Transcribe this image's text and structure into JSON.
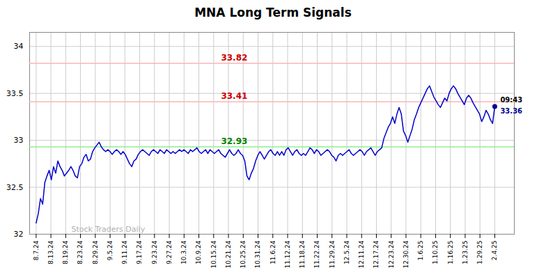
{
  "chart_data": {
    "type": "line",
    "title": "MNA Long Term Signals",
    "color": "#0000cc",
    "end_dot_color": "#00008b",
    "background_color": "#ffffff",
    "grid": true,
    "xlim": [
      -3,
      220
    ],
    "ylim": [
      32.0,
      34.15
    ],
    "yticks": [
      32.0,
      32.5,
      33.0,
      33.5,
      34.0
    ],
    "xticks": [
      {
        "value": 0,
        "label": "8.7.24"
      },
      {
        "value": 6.806451612903226,
        "label": "8.13.24"
      },
      {
        "value": 13.612903225806452,
        "label": "8.19.24"
      },
      {
        "value": 20.41935483870968,
        "label": "8.23.24"
      },
      {
        "value": 27.225806451612904,
        "label": "8.29.24"
      },
      {
        "value": 34.03225806451613,
        "label": "9.5.24"
      },
      {
        "value": 40.83870967741935,
        "label": "9.11.24"
      },
      {
        "value": 47.645161290322584,
        "label": "9.17.24"
      },
      {
        "value": 54.45161290322581,
        "label": "9.23.24"
      },
      {
        "value": 61.25806451612903,
        "label": "9.27.24"
      },
      {
        "value": 68.06451612903226,
        "label": "10.3.24"
      },
      {
        "value": 74.87096774193549,
        "label": "10.9.24"
      },
      {
        "value": 81.6774193548387,
        "label": "10.15.24"
      },
      {
        "value": 88.48387096774194,
        "label": "10.21.24"
      },
      {
        "value": 95.29032258064517,
        "label": "10.25.24"
      },
      {
        "value": 102.09677419354838,
        "label": "10.31.24"
      },
      {
        "value": 108.90322580645162,
        "label": "11.6.24"
      },
      {
        "value": 115.70967741935483,
        "label": "11.12.24"
      },
      {
        "value": 122.51612903225806,
        "label": "11.18.24"
      },
      {
        "value": 129.32258064516128,
        "label": "11.22.24"
      },
      {
        "value": 136.1290322580645,
        "label": "11.29.24"
      },
      {
        "value": 142.93548387096774,
        "label": "12.5.24"
      },
      {
        "value": 149.74193548387098,
        "label": "12.11.24"
      },
      {
        "value": 156.5483870967742,
        "label": "12.17.24"
      },
      {
        "value": 163.3548387096774,
        "label": "12.23.24"
      },
      {
        "value": 170.16129032258064,
        "label": "12.30.24"
      },
      {
        "value": 176.96774193548387,
        "label": "1.6.25"
      },
      {
        "value": 183.7741935483871,
        "label": "1.10.25"
      },
      {
        "value": 190.58064516129033,
        "label": "1.16.25"
      },
      {
        "value": 197.38709677419354,
        "label": "1.23.25"
      },
      {
        "value": 204.19354838709677,
        "label": "1.29.25"
      },
      {
        "value": 211,
        "label": "2.4.25"
      }
    ],
    "hlines": [
      {
        "value": 33.82,
        "color": "#ffb3b3",
        "label": "33.82",
        "label_color": "#cc0000"
      },
      {
        "value": 33.41,
        "color": "#ffb3b3",
        "label": "33.41",
        "label_color": "#cc0000"
      },
      {
        "value": 32.93,
        "color": "#90ee90",
        "label": "32.93",
        "label_color": "#008000"
      }
    ],
    "annotations": [
      {
        "text": "09:43",
        "color": "#000000"
      },
      {
        "text": "33.36",
        "color": "#00008b"
      }
    ],
    "watermark": {
      "text": "Stock Traders Daily",
      "color": "#b0b0b0"
    },
    "x": [
      0,
      1,
      2,
      3,
      4,
      5,
      6,
      7,
      8,
      9,
      10,
      11,
      12,
      13,
      14,
      15,
      16,
      17,
      18,
      19,
      20,
      21,
      22,
      23,
      24,
      25,
      26,
      27,
      28,
      29,
      30,
      31,
      32,
      33,
      34,
      35,
      36,
      37,
      38,
      39,
      40,
      41,
      42,
      43,
      44,
      45,
      46,
      47,
      48,
      49,
      50,
      51,
      52,
      53,
      54,
      55,
      56,
      57,
      58,
      59,
      60,
      61,
      62,
      63,
      64,
      65,
      66,
      67,
      68,
      69,
      70,
      71,
      72,
      73,
      74,
      75,
      76,
      77,
      78,
      79,
      80,
      81,
      82,
      83,
      84,
      85,
      86,
      87,
      88,
      89,
      90,
      91,
      92,
      93,
      94,
      95,
      96,
      97,
      98,
      99,
      100,
      101,
      102,
      103,
      104,
      105,
      106,
      107,
      108,
      109,
      110,
      111,
      112,
      113,
      114,
      115,
      116,
      117,
      118,
      119,
      120,
      121,
      122,
      123,
      124,
      125,
      126,
      127,
      128,
      129,
      130,
      131,
      132,
      133,
      134,
      135,
      136,
      137,
      138,
      139,
      140,
      141,
      142,
      143,
      144,
      145,
      146,
      147,
      148,
      149,
      150,
      151,
      152,
      153,
      154,
      155,
      156,
      157,
      158,
      159,
      160,
      161,
      162,
      163,
      164,
      165,
      166,
      167,
      168,
      169,
      170,
      171,
      172,
      173,
      174,
      175,
      176,
      177,
      178,
      179,
      180,
      181,
      182,
      183,
      184,
      185,
      186,
      187,
      188,
      189,
      190,
      191,
      192,
      193,
      194,
      195,
      196,
      197,
      198,
      199,
      200,
      201,
      202,
      203,
      204,
      205,
      206,
      207,
      208,
      209,
      210,
      211
    ],
    "values": [
      32.12,
      32.22,
      32.38,
      32.32,
      32.55,
      32.62,
      32.68,
      32.58,
      32.72,
      32.65,
      32.78,
      32.72,
      32.68,
      32.62,
      32.65,
      32.68,
      32.72,
      32.68,
      32.62,
      32.6,
      32.72,
      32.75,
      32.82,
      32.85,
      32.78,
      32.8,
      32.88,
      32.92,
      32.95,
      32.98,
      32.93,
      32.9,
      32.88,
      32.9,
      32.88,
      32.85,
      32.88,
      32.9,
      32.88,
      32.85,
      32.88,
      32.85,
      32.8,
      32.75,
      32.72,
      32.78,
      32.8,
      32.85,
      32.88,
      32.9,
      32.88,
      32.86,
      32.84,
      32.88,
      32.9,
      32.88,
      32.86,
      32.9,
      32.88,
      32.86,
      32.9,
      32.88,
      32.86,
      32.88,
      32.86,
      32.88,
      32.9,
      32.88,
      32.9,
      32.88,
      32.86,
      32.9,
      32.88,
      32.9,
      32.92,
      32.88,
      32.86,
      32.88,
      32.9,
      32.86,
      32.9,
      32.88,
      32.86,
      32.88,
      32.9,
      32.86,
      32.84,
      32.82,
      32.86,
      32.9,
      32.86,
      32.84,
      32.86,
      32.9,
      32.86,
      32.84,
      32.78,
      32.62,
      32.58,
      32.65,
      32.7,
      32.78,
      32.84,
      32.88,
      32.84,
      32.8,
      32.84,
      32.88,
      32.9,
      32.86,
      32.84,
      32.88,
      32.84,
      32.88,
      32.84,
      32.9,
      32.92,
      32.88,
      32.84,
      32.88,
      32.9,
      32.86,
      32.84,
      32.86,
      32.84,
      32.88,
      32.92,
      32.9,
      32.86,
      32.9,
      32.88,
      32.84,
      32.86,
      32.88,
      32.9,
      32.88,
      32.84,
      32.82,
      32.78,
      32.84,
      32.86,
      32.84,
      32.86,
      32.88,
      32.9,
      32.86,
      32.84,
      32.86,
      32.88,
      32.9,
      32.88,
      32.84,
      32.88,
      32.9,
      32.92,
      32.88,
      32.84,
      32.88,
      32.9,
      32.92,
      33.02,
      33.08,
      33.14,
      33.18,
      33.25,
      33.18,
      33.28,
      33.35,
      33.28,
      33.1,
      33.05,
      32.98,
      33.05,
      33.12,
      33.22,
      33.28,
      33.35,
      33.4,
      33.45,
      33.5,
      33.55,
      33.58,
      33.52,
      33.46,
      33.42,
      33.38,
      33.35,
      33.4,
      33.45,
      33.42,
      33.5,
      33.55,
      33.58,
      33.55,
      33.5,
      33.46,
      33.42,
      33.38,
      33.45,
      33.48,
      33.45,
      33.4,
      33.36,
      33.32,
      33.28,
      33.2,
      33.25,
      33.32,
      33.28,
      33.22,
      33.18,
      33.36
    ]
  }
}
